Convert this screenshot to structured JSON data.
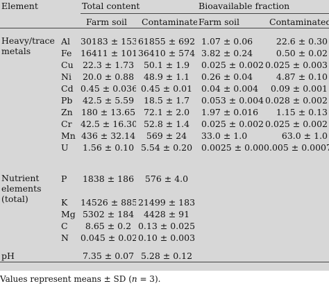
{
  "headers": {
    "element": "Element",
    "total_content": "Total content",
    "bioavailable": "Bioavailable fraction",
    "farm_soil": "Farm soil",
    "contaminated": "Contaminated"
  },
  "groups": [
    {
      "label": "Heavy/trace metals",
      "rows": [
        {
          "sym": "Al",
          "tf": "30183 ± 1539",
          "tc": "61855 ± 692",
          "bf": "1.07 ± 0.06",
          "bc": "22.6 ± 0.30"
        },
        {
          "sym": "Fe",
          "tf": "16411 ± 1016",
          "tc": "36410 ± 574",
          "bf": "3.82 ± 0.24",
          "bc": "0.50 ± 0.02"
        },
        {
          "sym": "Cu",
          "tf": "22.3 ± 1.73",
          "tc": "50.1 ± 1.9",
          "bf": "0.025 ± 0.002",
          "bc": "0.025 ± 0.003"
        },
        {
          "sym": "Ni",
          "tf": "20.0 ± 0.88",
          "tc": "48.9 ± 1.1",
          "bf": "0.26 ± 0.04",
          "bc": "4.87 ± 0.10"
        },
        {
          "sym": "Cd",
          "tf": "0.45 ± 0.036",
          "tc": "0.45 ± 0.01",
          "bf": "0.04 ± 0.004",
          "bc": "0.09 ± 0.001"
        },
        {
          "sym": "Pb",
          "tf": "42.5 ± 5.59",
          "tc": "18.5 ± 1.7",
          "bf": "0.053 ± 0.004",
          "bc": "0.028 ± 0.002"
        },
        {
          "sym": "Zn",
          "tf": "180 ± 13.65",
          "tc": "72.1 ± 2.0",
          "bf": "1.97 ± 0.016",
          "bc": "1.15 ± 0.13"
        },
        {
          "sym": "Cr",
          "tf": "42.5 ± 16.30",
          "tc": "52.8 ± 1.4",
          "bf": "0.025 ± 0.002",
          "bc": "0.025 ± 0.002"
        },
        {
          "sym": "Mn",
          "tf": "436 ± 32.14",
          "tc": "569 ± 24",
          "bf": "33.0 ± 1.0",
          "bc": "63.0 ± 1.0"
        },
        {
          "sym": "U",
          "tf": "1.56 ± 0.10",
          "tc": "5.54 ± 0.20",
          "bf": "0.0025 ± 0.0004",
          "bc": "0.005 ± 0.0007"
        }
      ]
    },
    {
      "label": "Nutrient elements (total)",
      "rows": [
        {
          "sym": "P",
          "tf": "1838 ± 186",
          "tc": "576 ± 4.0",
          "bf": "",
          "bc": ""
        },
        {
          "sym": "K",
          "tf": "14526 ± 885",
          "tc": "21499 ± 183",
          "bf": "",
          "bc": ""
        },
        {
          "sym": "Mg",
          "tf": "5302 ± 184",
          "tc": "4428 ± 91",
          "bf": "",
          "bc": ""
        },
        {
          "sym": "C",
          "tf": "8.65 ± 0.2",
          "tc": "0.13 ± 0.025",
          "bf": "",
          "bc": ""
        },
        {
          "sym": "N",
          "tf": "0.045 ± 0.021",
          "tc": "0.10 ± 0.003",
          "bf": "",
          "bc": ""
        }
      ]
    },
    {
      "label": "pH",
      "rows": [
        {
          "sym": "",
          "tf": "7.35 ± 0.07",
          "tc": "5.28 ± 0.12",
          "bf": "",
          "bc": ""
        }
      ]
    }
  ],
  "footnote": {
    "prefix": "Values represent means ± SD (",
    "n_symbol": "n",
    "suffix": " = 3)."
  }
}
